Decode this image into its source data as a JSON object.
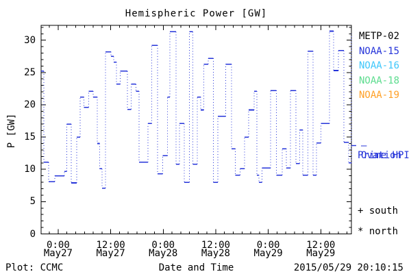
{
  "title": "Hemispheric Power [GW]",
  "y_axis": {
    "label": "P [GW]",
    "tick_labels": [
      "0",
      "5",
      "10",
      "15",
      "20",
      "25",
      "30"
    ]
  },
  "x_axis": {
    "label": "Date and Time",
    "tick_labels": [
      {
        "time": "0:00",
        "date": "May27"
      },
      {
        "time": "12:00",
        "date": "May27"
      },
      {
        "time": "0:00",
        "date": "May28"
      },
      {
        "time": "12:00",
        "date": "May28"
      },
      {
        "time": "0:00",
        "date": "May29"
      },
      {
        "time": "12:00",
        "date": "May29"
      }
    ]
  },
  "legend": {
    "satellites": [
      {
        "label": "METP-02",
        "color": "#000000"
      },
      {
        "label": "NOAA-15",
        "color": "#2433d9"
      },
      {
        "label": "NOAA-16",
        "color": "#3ec7fb"
      },
      {
        "label": "NOAA-18",
        "color": "#5cdc8e"
      },
      {
        "label": "NOAA-19",
        "color": "#ffa026"
      }
    ],
    "model_line1": "— Ovation",
    "model_line2": "Prime HPI",
    "model_color": "#2433d9",
    "south_note": "+ south",
    "north_note": "* north"
  },
  "footer": {
    "left": "Plot: CCMC",
    "center": "Date and Time",
    "right": "2015/05/29 20:10:15"
  },
  "chart_data": {
    "type": "line",
    "subtype": "step-stairs, solid horizontal segments joined by dotted vertical connectors",
    "title": "Hemispheric Power [GW]",
    "xlabel": "Date and Time",
    "ylabel": "P [GW]",
    "series_name": "Ovation Prime HPI",
    "line_color": "#2433d9",
    "grid": false,
    "x_unit": "hours since 2015-05-27 00:00 UT",
    "xlim": [
      -3.9,
      67.0
    ],
    "ylim": [
      0,
      32.3
    ],
    "y_major_ticks": [
      0,
      5,
      10,
      15,
      20,
      25,
      30
    ],
    "y_minor_step": 1,
    "x_major_ticks_hours": [
      0,
      12,
      24,
      36,
      48,
      60
    ],
    "x_minor_step_hours": 2,
    "steps_format": "[t_start_hours, t_end_hours, P_GW]",
    "steps": [
      [
        -3.9,
        -3.3,
        25.2
      ],
      [
        -3.3,
        -2.2,
        11.1
      ],
      [
        -2.2,
        -0.8,
        8.1
      ],
      [
        -0.8,
        1.4,
        9.0
      ],
      [
        1.4,
        2.0,
        9.7
      ],
      [
        2.0,
        3.0,
        17.0
      ],
      [
        3.0,
        4.2,
        7.9
      ],
      [
        4.2,
        5.0,
        15.0
      ],
      [
        5.0,
        5.9,
        21.2
      ],
      [
        5.9,
        7.0,
        19.6
      ],
      [
        7.0,
        8.0,
        22.1
      ],
      [
        8.0,
        8.9,
        21.2
      ],
      [
        8.9,
        9.5,
        14.0
      ],
      [
        9.5,
        10.0,
        10.1
      ],
      [
        10.0,
        10.8,
        7.1
      ],
      [
        10.8,
        12.1,
        28.2
      ],
      [
        12.1,
        12.7,
        27.5
      ],
      [
        12.7,
        13.3,
        26.6
      ],
      [
        13.3,
        14.2,
        23.2
      ],
      [
        14.2,
        15.8,
        25.2
      ],
      [
        15.8,
        16.7,
        19.3
      ],
      [
        16.7,
        17.8,
        23.2
      ],
      [
        17.8,
        18.5,
        22.1
      ],
      [
        18.5,
        20.5,
        11.1
      ],
      [
        20.5,
        21.4,
        17.1
      ],
      [
        21.4,
        22.7,
        29.2
      ],
      [
        22.7,
        23.9,
        9.3
      ],
      [
        23.9,
        25.0,
        12.1
      ],
      [
        25.0,
        25.5,
        21.2
      ],
      [
        25.5,
        26.9,
        31.3
      ],
      [
        26.9,
        27.7,
        10.8
      ],
      [
        27.7,
        28.8,
        17.1
      ],
      [
        28.8,
        30.0,
        8.0
      ],
      [
        30.0,
        30.8,
        31.3
      ],
      [
        30.8,
        31.8,
        10.8
      ],
      [
        31.8,
        32.6,
        21.2
      ],
      [
        32.6,
        33.3,
        19.2
      ],
      [
        33.3,
        34.3,
        26.3
      ],
      [
        34.3,
        35.5,
        27.2
      ],
      [
        35.5,
        36.5,
        8.0
      ],
      [
        36.5,
        38.3,
        18.2
      ],
      [
        38.3,
        39.6,
        26.3
      ],
      [
        39.6,
        40.5,
        13.2
      ],
      [
        40.5,
        41.6,
        9.1
      ],
      [
        41.6,
        42.6,
        10.1
      ],
      [
        42.6,
        43.5,
        15.0
      ],
      [
        43.5,
        44.8,
        19.2
      ],
      [
        44.8,
        45.4,
        22.1
      ],
      [
        45.4,
        45.9,
        9.1
      ],
      [
        45.9,
        46.6,
        8.0
      ],
      [
        46.6,
        48.5,
        10.2
      ],
      [
        48.5,
        49.9,
        22.2
      ],
      [
        49.9,
        51.2,
        9.1
      ],
      [
        51.2,
        52.1,
        13.2
      ],
      [
        52.1,
        53.1,
        10.2
      ],
      [
        53.1,
        54.3,
        22.2
      ],
      [
        54.3,
        55.2,
        10.9
      ],
      [
        55.2,
        55.9,
        16.1
      ],
      [
        55.9,
        57.1,
        9.1
      ],
      [
        57.1,
        58.2,
        28.3
      ],
      [
        58.2,
        59.0,
        9.1
      ],
      [
        59.0,
        60.0,
        14.1
      ],
      [
        60.0,
        62.0,
        17.1
      ],
      [
        62.0,
        62.9,
        31.4
      ],
      [
        62.9,
        64.0,
        25.3
      ],
      [
        64.0,
        65.3,
        28.4
      ],
      [
        65.3,
        66.4,
        14.2
      ],
      [
        66.4,
        67.0,
        11.0
      ],
      [
        67.0,
        67.0,
        31.0
      ]
    ]
  }
}
